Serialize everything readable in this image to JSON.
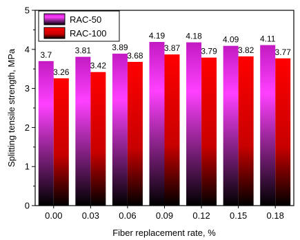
{
  "chart_data": {
    "type": "bar",
    "categories": [
      "0.00",
      "0.03",
      "0.06",
      "0.09",
      "0.12",
      "0.15",
      "0.18"
    ],
    "series": [
      {
        "name": "RAC-50",
        "values": [
          3.7,
          3.81,
          3.89,
          4.19,
          4.18,
          4.09,
          4.11
        ],
        "labels": [
          "3.7",
          "3.81",
          "3.89",
          "4.19",
          "4.18",
          "4.09",
          "4.11"
        ]
      },
      {
        "name": "RAC-100",
        "values": [
          3.26,
          3.42,
          3.68,
          3.87,
          3.79,
          3.82,
          3.77
        ],
        "labels": [
          "3.26",
          "3.42",
          "3.68",
          "3.87",
          "3.79",
          "3.82",
          "3.77"
        ]
      }
    ],
    "xlabel": "Fiber replacement rate, %",
    "ylabel": "Splitting tensile strength, MPa",
    "ylim": [
      0,
      5
    ],
    "yticks": [
      "0",
      "1",
      "2",
      "3",
      "4",
      "5"
    ],
    "legend_position": "top-left",
    "colors": {
      "RAC-50": {
        "top": "#ff40ff",
        "mid": "#8a1a8a",
        "bottom": "#000000"
      },
      "RAC-100": {
        "top": "#ff0000",
        "mid": "#a00000",
        "bottom": "#000000"
      }
    }
  }
}
